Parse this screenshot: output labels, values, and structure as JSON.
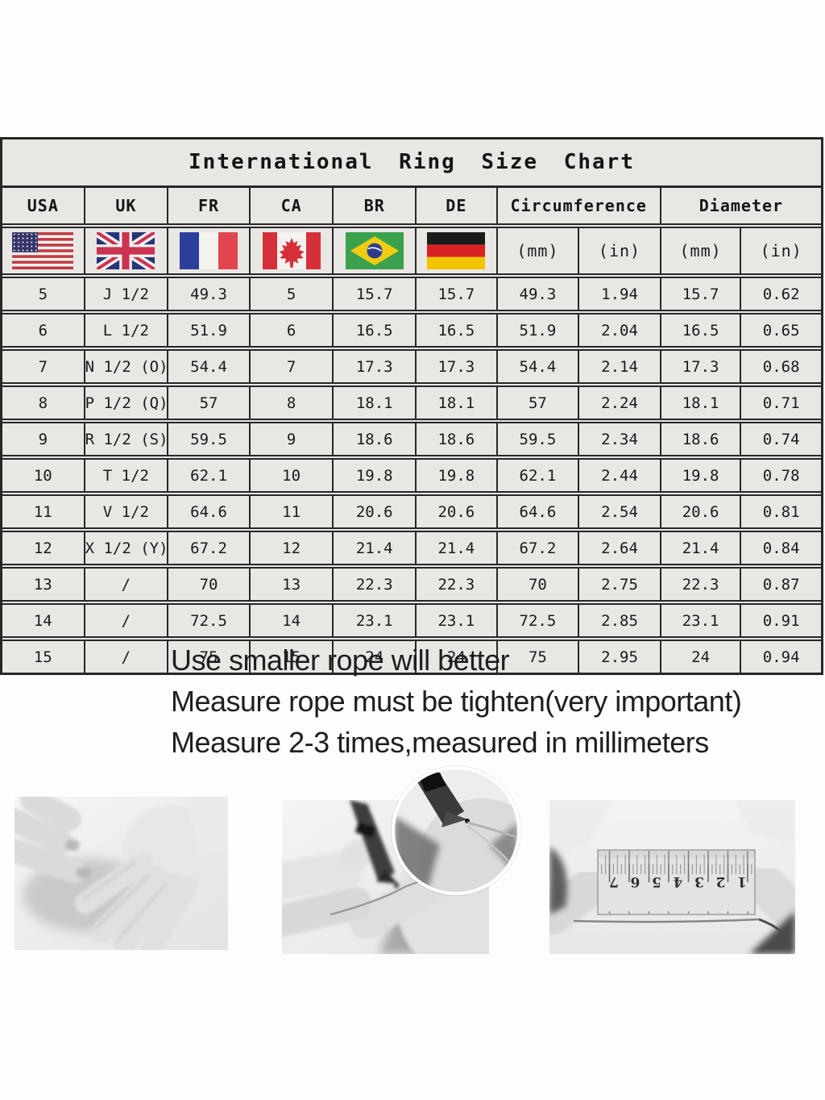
{
  "table": {
    "title": "International Ring Size Chart",
    "country_columns": [
      {
        "code": "USA",
        "flag": "us-flag"
      },
      {
        "code": "UK",
        "flag": "uk-flag"
      },
      {
        "code": "FR",
        "flag": "fr-flag"
      },
      {
        "code": "CA",
        "flag": "ca-flag"
      },
      {
        "code": "BR",
        "flag": "br-flag"
      },
      {
        "code": "DE",
        "flag": "de-flag"
      }
    ],
    "measure_columns": [
      {
        "label": "Circumference",
        "units": [
          "(mm)",
          "(in)"
        ]
      },
      {
        "label": "Diameter",
        "units": [
          "(mm)",
          "(in)"
        ]
      }
    ],
    "rows": [
      [
        "5",
        "J 1/2",
        "49.3",
        "5",
        "15.7",
        "15.7",
        "49.3",
        "1.94",
        "15.7",
        "0.62"
      ],
      [
        "6",
        "L 1/2",
        "51.9",
        "6",
        "16.5",
        "16.5",
        "51.9",
        "2.04",
        "16.5",
        "0.65"
      ],
      [
        "7",
        "N 1/2 (O)",
        "54.4",
        "7",
        "17.3",
        "17.3",
        "54.4",
        "2.14",
        "17.3",
        "0.68"
      ],
      [
        "8",
        "P 1/2 (Q)",
        "57",
        "8",
        "18.1",
        "18.1",
        "57",
        "2.24",
        "18.1",
        "0.71"
      ],
      [
        "9",
        "R 1/2 (S)",
        "59.5",
        "9",
        "18.6",
        "18.6",
        "59.5",
        "2.34",
        "18.6",
        "0.74"
      ],
      [
        "10",
        "T 1/2",
        "62.1",
        "10",
        "19.8",
        "19.8",
        "62.1",
        "2.44",
        "19.8",
        "0.78"
      ],
      [
        "11",
        "V 1/2",
        "64.6",
        "11",
        "20.6",
        "20.6",
        "64.6",
        "2.54",
        "20.6",
        "0.81"
      ],
      [
        "12",
        "X 1/2 (Y)",
        "67.2",
        "12",
        "21.4",
        "21.4",
        "67.2",
        "2.64",
        "21.4",
        "0.84"
      ],
      [
        "13",
        "/",
        "70",
        "13",
        "22.3",
        "22.3",
        "70",
        "2.75",
        "22.3",
        "0.87"
      ],
      [
        "14",
        "/",
        "72.5",
        "14",
        "23.1",
        "23.1",
        "72.5",
        "2.85",
        "23.1",
        "0.91"
      ],
      [
        "15",
        "/",
        "75",
        "15",
        "24",
        "24",
        "75",
        "2.95",
        "24",
        "0.94"
      ]
    ]
  },
  "notes": [
    "Use smaller rope will better",
    "Measure rope must be tighten(very important)",
    "Measure 2-3 times,measured in millimeters"
  ],
  "photos": {
    "ruler_numbers": [
      "1",
      "2",
      "3",
      "4",
      "5",
      "6",
      "7"
    ]
  },
  "colors": {
    "table_background": "#e8e7e4",
    "table_border": "#272727",
    "page_background": "#fdfdfc",
    "text": "#1b1b1b"
  }
}
